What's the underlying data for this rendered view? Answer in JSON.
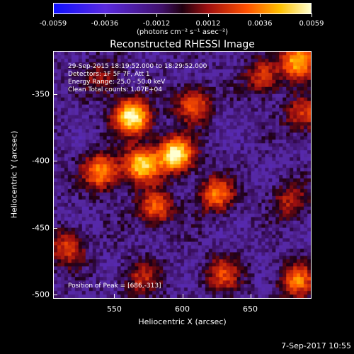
{
  "colorbar": {
    "ticks": [
      "-0.0059",
      "-0.0036",
      "-0.0012",
      "0.0012",
      "0.0036",
      "0.0059"
    ],
    "units": "(photons cm⁻² s⁻¹ asec⁻²)"
  },
  "title": "Reconstructed RHESSI Image",
  "annotations": {
    "time": "29-Sep-2015 18:19:52.000 to 18:29:52.000",
    "detectors": "Detectors: 1F 5F 7F, Att 1",
    "energy": "Energy Range: 25.0 - 50.0 keV",
    "clean": "Clean     Total counts: 1.07E+04",
    "peak": "Position of Peak = [686,-313]"
  },
  "axes": {
    "xlabel": "Heliocentric X (arcsec)",
    "ylabel": "Heliocentric Y (arcsec)",
    "xticks": [
      "550",
      "600",
      "650"
    ],
    "yticks": [
      "-350",
      "-400",
      "-450",
      "-500"
    ]
  },
  "footer": "7-Sep-2017 10:55",
  "chart_data": {
    "type": "heatmap",
    "title": "Reconstructed RHESSI Image",
    "xlabel": "Heliocentric X (arcsec)",
    "ylabel": "Heliocentric Y (arcsec)",
    "xlim": [
      505,
      695
    ],
    "ylim": [
      -503,
      -318
    ],
    "value_range": [
      -0.0059,
      0.0059
    ],
    "peak_position": [
      686,
      -313
    ],
    "sources": [
      {
        "x": 563,
        "y": -367,
        "strength": 1.0
      },
      {
        "x": 595,
        "y": -395,
        "strength": 1.0
      },
      {
        "x": 570,
        "y": -403,
        "strength": 0.85
      },
      {
        "x": 540,
        "y": -408,
        "strength": 0.7
      },
      {
        "x": 608,
        "y": -358,
        "strength": 0.55
      },
      {
        "x": 580,
        "y": -435,
        "strength": 0.55
      },
      {
        "x": 625,
        "y": -425,
        "strength": 0.6
      },
      {
        "x": 686,
        "y": -325,
        "strength": 0.8
      },
      {
        "x": 660,
        "y": -337,
        "strength": 0.45
      },
      {
        "x": 540,
        "y": -338,
        "strength": 0.3
      },
      {
        "x": 690,
        "y": -365,
        "strength": 0.45
      },
      {
        "x": 685,
        "y": -490,
        "strength": 0.6
      },
      {
        "x": 630,
        "y": -485,
        "strength": 0.45
      },
      {
        "x": 570,
        "y": -488,
        "strength": 0.35
      },
      {
        "x": 515,
        "y": -465,
        "strength": 0.45
      },
      {
        "x": 680,
        "y": -430,
        "strength": 0.35
      }
    ]
  }
}
